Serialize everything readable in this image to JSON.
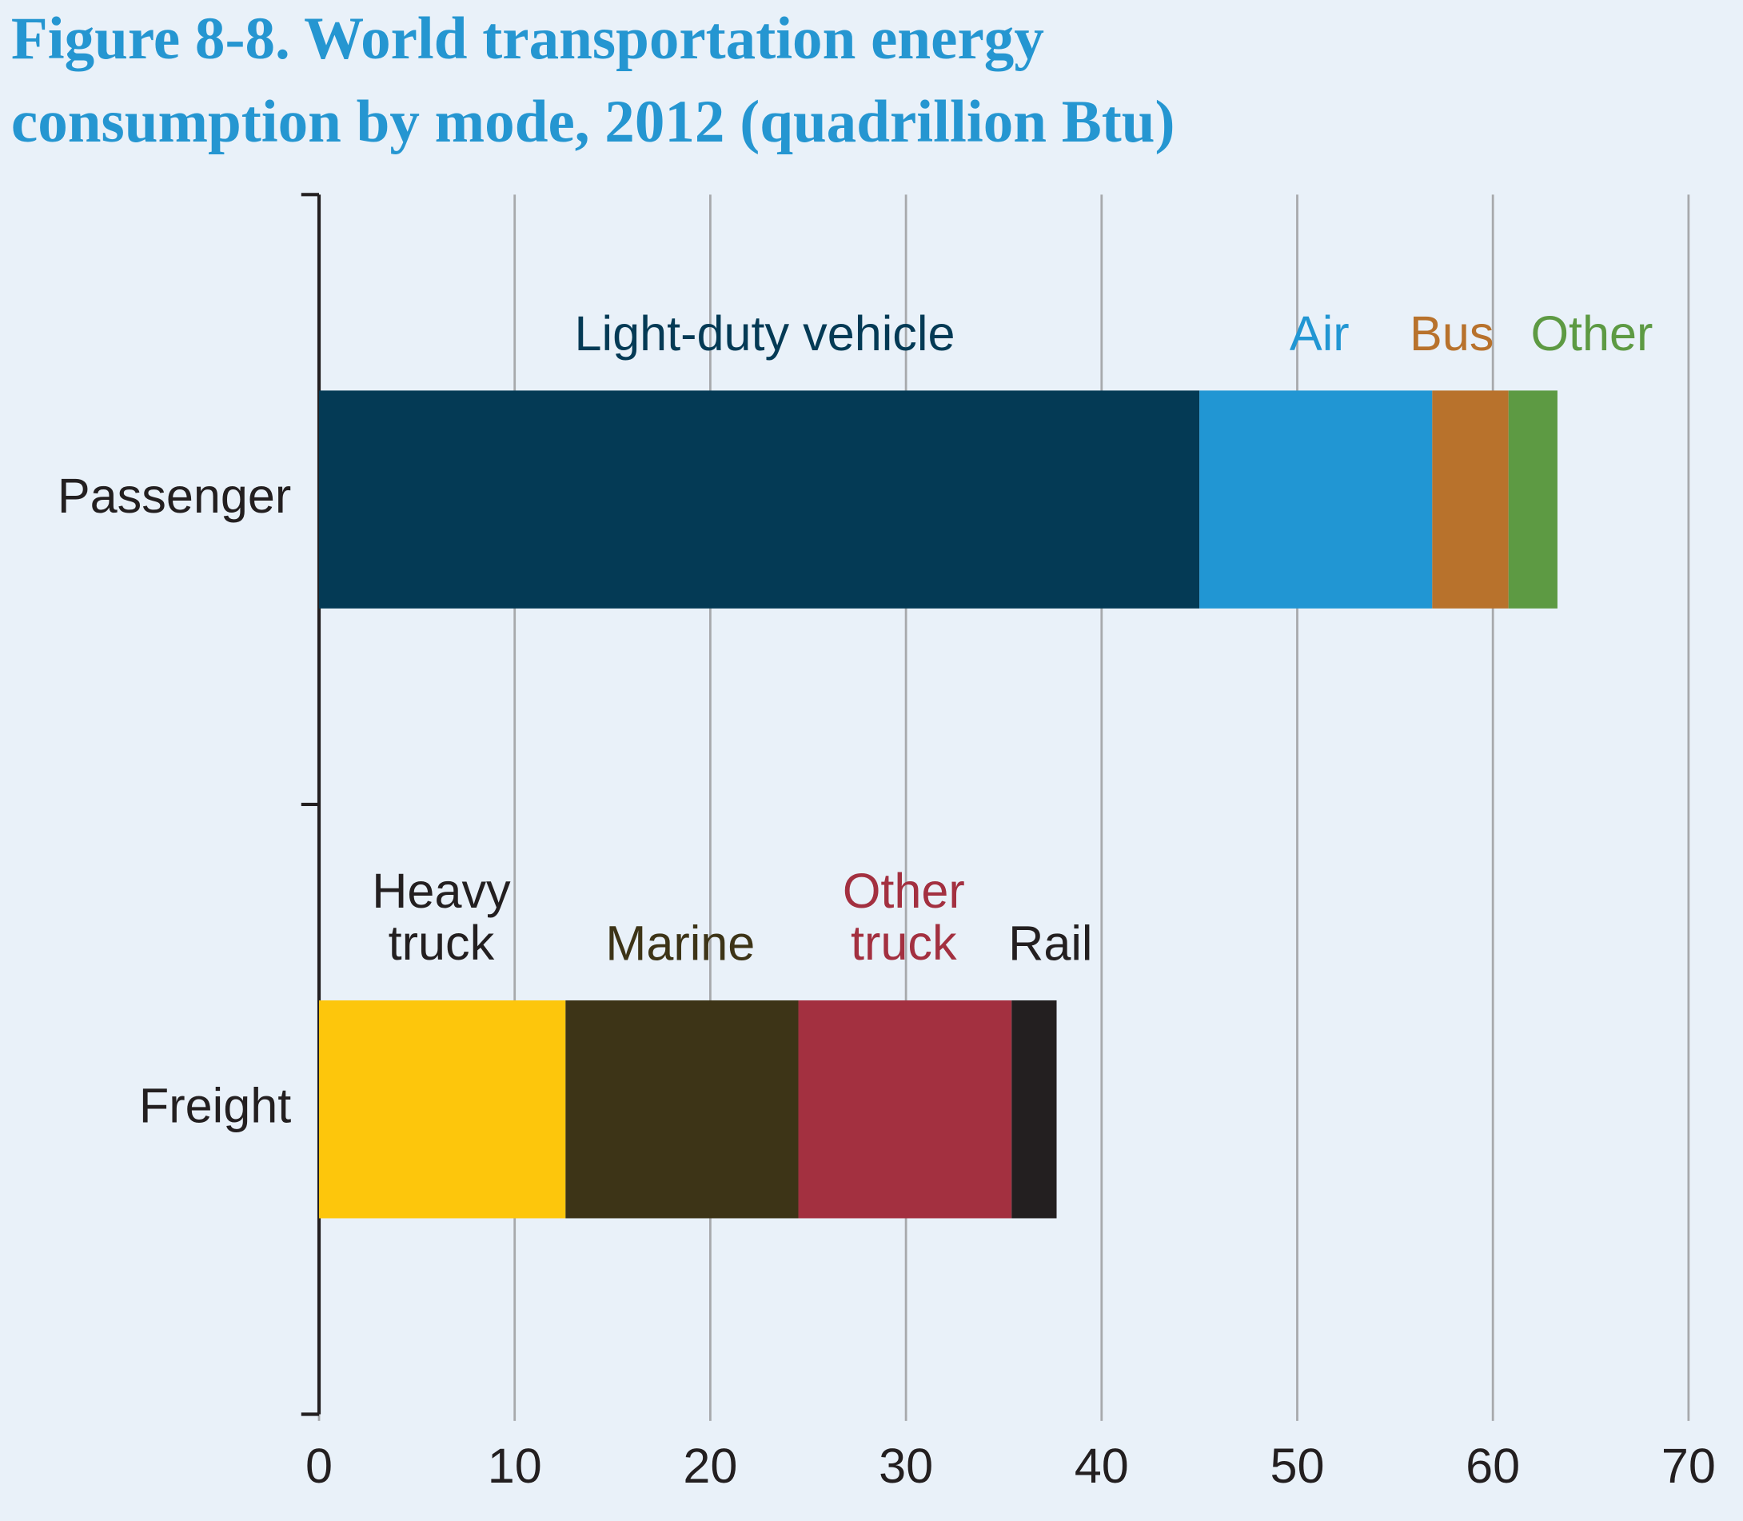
{
  "chart_data": {
    "type": "stacked-bar-horizontal",
    "title_lines": [
      "Figure 8-8. World transportation energy",
      "consumption by mode, 2012 (quadrillion Btu)"
    ],
    "categories": [
      "Passenger",
      "Freight"
    ],
    "series": [
      {
        "name": "Light-duty vehicle",
        "color": "#043a55",
        "label_color": "#043a55",
        "values": [
          45.0,
          null
        ]
      },
      {
        "name": "Air",
        "color": "#2196d3",
        "label_color": "#2196d3",
        "values": [
          11.9,
          null
        ]
      },
      {
        "name": "Bus",
        "color": "#b8722c",
        "label_color": "#b8722c",
        "values": [
          3.9,
          null
        ]
      },
      {
        "name": "Other",
        "color": "#5d9a43",
        "label_color": "#5d9a43",
        "values": [
          2.5,
          null
        ]
      },
      {
        "name": "Heavy truck",
        "color": "#fdc60c",
        "label_color": "#231f20",
        "values": [
          null,
          12.6
        ]
      },
      {
        "name": "Marine",
        "color": "#3d3417",
        "label_color": "#3d3417",
        "values": [
          null,
          11.9
        ]
      },
      {
        "name": "Other truck",
        "color": "#a33040",
        "label_color": "#a33040",
        "values": [
          null,
          10.9
        ]
      },
      {
        "name": "Rail",
        "color": "#231f20",
        "label_color": "#231f20",
        "values": [
          null,
          2.3
        ]
      }
    ],
    "xlim": [
      0,
      70
    ],
    "xticks": [
      0,
      10,
      20,
      30,
      40,
      50,
      60,
      70
    ],
    "grid": true
  }
}
